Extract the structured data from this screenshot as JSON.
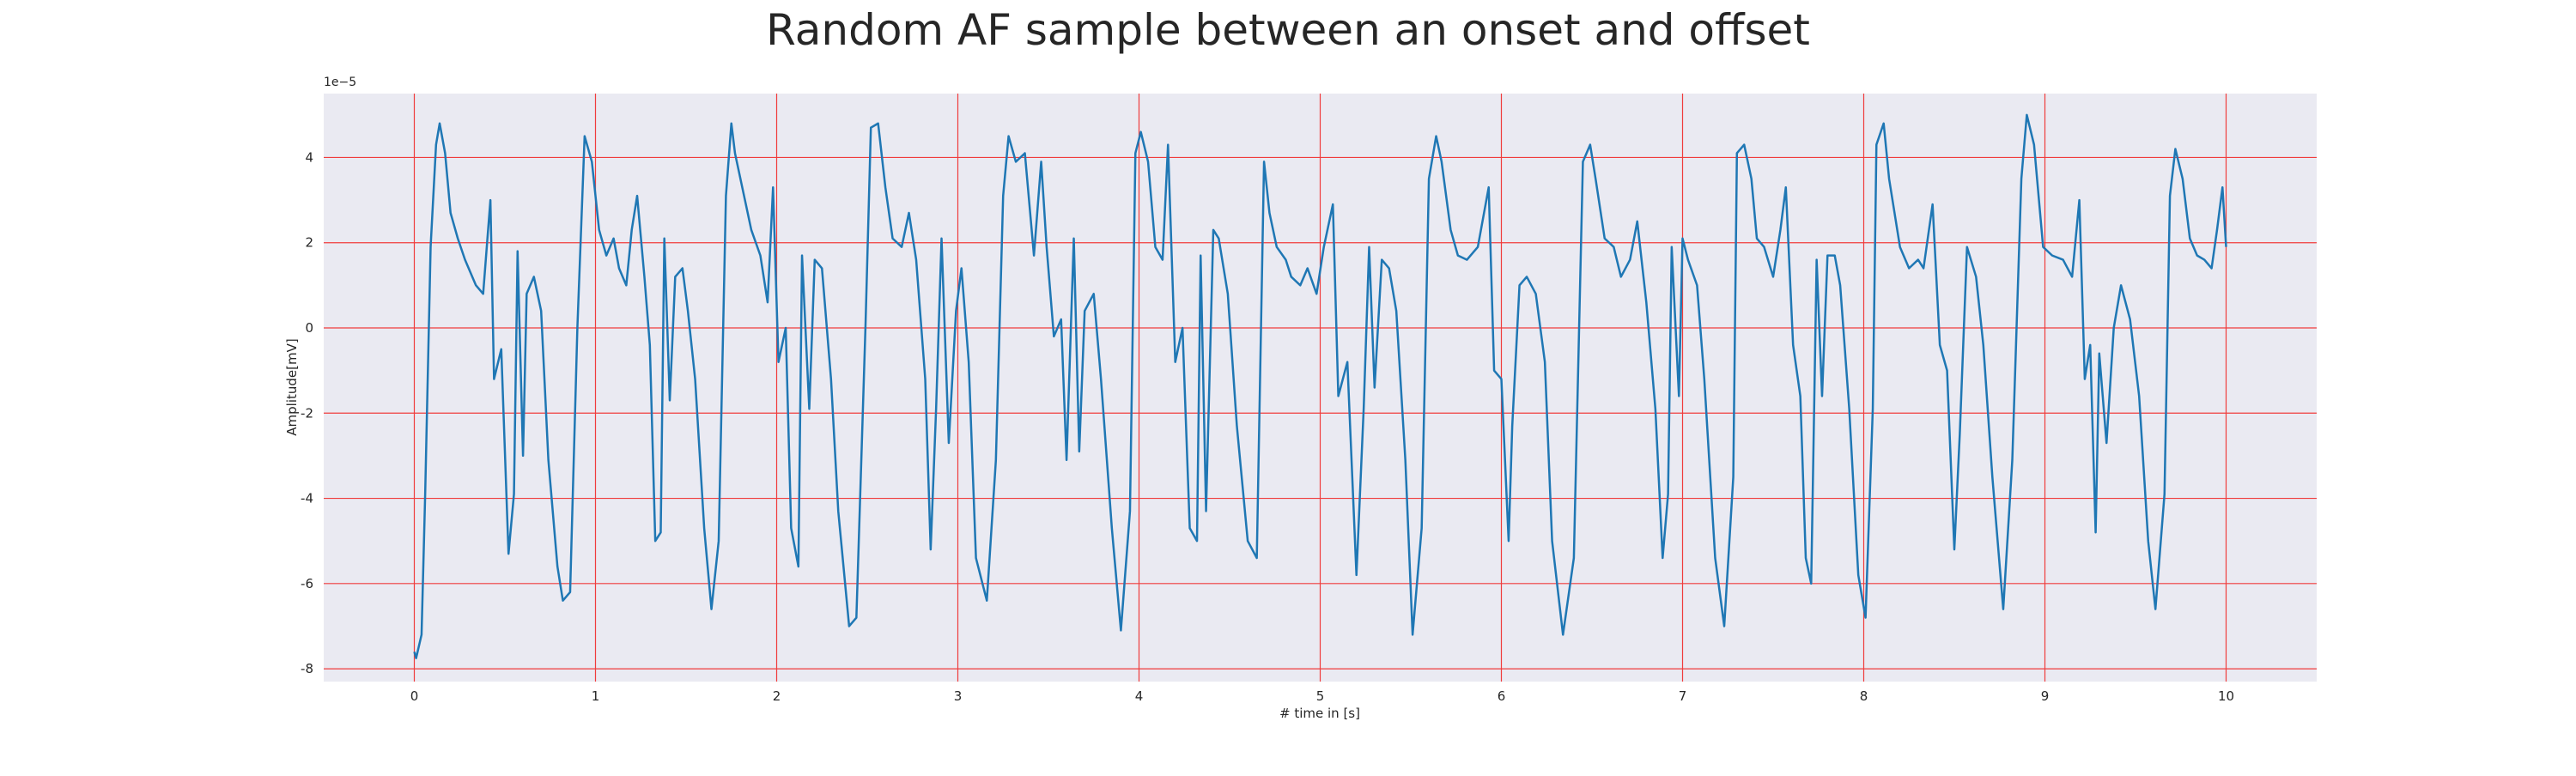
{
  "chart_data": {
    "type": "line",
    "title": "Random AF sample between an onset and offset",
    "xlabel": "# time in [s]",
    "ylabel": "Amplitude[mV]",
    "y_offset_label": "1e−5",
    "color": "#1f77b4",
    "grid": true,
    "grid_color": "#f03c3c",
    "xlim": [
      -0.5,
      10.5
    ],
    "ylim": [
      -8.3,
      5.5
    ],
    "xticks": [
      0,
      1,
      2,
      3,
      4,
      5,
      6,
      7,
      8,
      9,
      10
    ],
    "yticks": [
      -8,
      -6,
      -4,
      -2,
      0,
      2,
      4
    ],
    "x": [
      0,
      0.01,
      0.04,
      0.06,
      0.09,
      0.12,
      0.14,
      0.17,
      0.2,
      0.24,
      0.28,
      0.34,
      0.38,
      0.42,
      0.44,
      0.48,
      0.52,
      0.55,
      0.57,
      0.6,
      0.62,
      0.66,
      0.7,
      0.74,
      0.79,
      0.82,
      0.86,
      0.9,
      0.94,
      0.98,
      1.02,
      1.06,
      1.1,
      1.13,
      1.17,
      1.2,
      1.23,
      1.27,
      1.3,
      1.33,
      1.36,
      1.38,
      1.41,
      1.44,
      1.48,
      1.51,
      1.55,
      1.6,
      1.64,
      1.68,
      1.72,
      1.75,
      1.77,
      1.82,
      1.86,
      1.91,
      1.95,
      1.98,
      2.01,
      2.05,
      2.08,
      2.12,
      2.14,
      2.18,
      2.21,
      2.25,
      2.3,
      2.34,
      2.4,
      2.44,
      2.49,
      2.52,
      2.56,
      2.6,
      2.64,
      2.69,
      2.73,
      2.77,
      2.82,
      2.85,
      2.88,
      2.91,
      2.95,
      2.99,
      3.02,
      3.06,
      3.1,
      3.16,
      3.21,
      3.25,
      3.28,
      3.32,
      3.37,
      3.42,
      3.46,
      3.49,
      3.53,
      3.57,
      3.6,
      3.64,
      3.67,
      3.7,
      3.75,
      3.79,
      3.85,
      3.9,
      3.95,
      3.98,
      4.01,
      4.05,
      4.09,
      4.13,
      4.16,
      4.2,
      4.24,
      4.28,
      4.32,
      4.34,
      4.37,
      4.41,
      4.44,
      4.49,
      4.54,
      4.6,
      4.65,
      4.69,
      4.72,
      4.76,
      4.81,
      4.84,
      4.89,
      4.93,
      4.98,
      5.02,
      5.07,
      5.1,
      5.15,
      5.2,
      5.24,
      5.27,
      5.3,
      5.34,
      5.38,
      5.42,
      5.47,
      5.51,
      5.56,
      5.6,
      5.64,
      5.67,
      5.72,
      5.76,
      5.81,
      5.87,
      5.93,
      5.96,
      6.0,
      6.04,
      6.06,
      6.1,
      6.14,
      6.19,
      6.24,
      6.28,
      6.34,
      6.4,
      6.45,
      6.49,
      6.52,
      6.57,
      6.62,
      6.66,
      6.71,
      6.75,
      6.8,
      6.85,
      6.89,
      6.92,
      6.94,
      6.98,
      7.0,
      7.03,
      7.08,
      7.12,
      7.18,
      7.23,
      7.28,
      7.3,
      7.34,
      7.38,
      7.41,
      7.45,
      7.5,
      7.54,
      7.57,
      7.61,
      7.65,
      7.68,
      7.71,
      7.74,
      7.77,
      7.8,
      7.84,
      7.87,
      7.92,
      7.97,
      8.01,
      8.05,
      8.07,
      8.11,
      8.14,
      8.2,
      8.25,
      8.3,
      8.33,
      8.38,
      8.42,
      8.46,
      8.5,
      8.53,
      8.57,
      8.62,
      8.66,
      8.71,
      8.77,
      8.82,
      8.87,
      8.9,
      8.94,
      8.99,
      9.04,
      9.1,
      9.15,
      9.19,
      9.22,
      9.25,
      9.28,
      9.3,
      9.34,
      9.38,
      9.42,
      9.47,
      9.52,
      9.57,
      9.61,
      9.66,
      9.69,
      9.72,
      9.76,
      9.8,
      9.84,
      9.88,
      9.92,
      9.95,
      9.98,
      10.0
    ],
    "values": [
      -7.6,
      -7.75,
      -7.2,
      -3.9,
      1.9,
      4.3,
      4.8,
      4.1,
      2.7,
      2.1,
      1.6,
      1.0,
      0.8,
      3.0,
      -1.2,
      -0.5,
      -5.3,
      -3.9,
      1.8,
      -3.0,
      0.8,
      1.2,
      0.4,
      -3.1,
      -5.6,
      -6.4,
      -6.2,
      0,
      4.5,
      3.9,
      2.3,
      1.7,
      2.1,
      1.4,
      1.0,
      2.3,
      3.1,
      1.2,
      -0.4,
      -5.0,
      -4.8,
      2.1,
      -1.7,
      1.2,
      1.4,
      0.4,
      -1.2,
      -4.7,
      -6.6,
      -5.0,
      3.1,
      4.8,
      4.1,
      3.1,
      2.3,
      1.7,
      0.6,
      3.3,
      -0.8,
      0,
      -4.7,
      -5.6,
      1.7,
      -1.9,
      1.6,
      1.4,
      -1.2,
      -4.3,
      -7.0,
      -6.8,
      0,
      4.7,
      4.8,
      3.3,
      2.1,
      1.9,
      2.7,
      1.6,
      -1.2,
      -5.2,
      -1.9,
      2.1,
      -2.7,
      0.4,
      1.4,
      -0.8,
      -5.4,
      -6.4,
      -3.1,
      3.1,
      4.5,
      3.9,
      4.1,
      1.7,
      3.9,
      1.9,
      -0.2,
      0.2,
      -3.1,
      2.1,
      -2.9,
      0.4,
      0.8,
      -1.2,
      -4.7,
      -7.1,
      -4.3,
      4.1,
      4.6,
      3.9,
      1.9,
      1.6,
      4.3,
      -0.8,
      0,
      -4.7,
      -5.0,
      1.7,
      -4.3,
      2.3,
      2.1,
      0.8,
      -2.3,
      -5.0,
      -5.4,
      3.9,
      2.7,
      1.9,
      1.6,
      1.2,
      1.0,
      1.4,
      0.8,
      1.9,
      2.9,
      -1.6,
      -0.8,
      -5.8,
      -1.9,
      1.9,
      -1.4,
      1.6,
      1.4,
      0.4,
      -3.1,
      -7.2,
      -4.7,
      3.5,
      4.5,
      3.9,
      2.3,
      1.7,
      1.6,
      1.9,
      3.3,
      -1.0,
      -1.2,
      -5.0,
      -2.3,
      1.0,
      1.2,
      0.8,
      -0.8,
      -5.0,
      -7.2,
      -5.4,
      3.9,
      4.3,
      3.5,
      2.1,
      1.9,
      1.2,
      1.6,
      2.5,
      0.6,
      -1.9,
      -5.4,
      -3.9,
      1.9,
      -1.6,
      2.1,
      1.6,
      1.0,
      -1.2,
      -5.4,
      -7.0,
      -3.5,
      4.1,
      4.3,
      3.5,
      2.1,
      1.9,
      1.2,
      2.3,
      3.3,
      -0.4,
      -1.6,
      -5.4,
      -6.0,
      1.6,
      -1.6,
      1.7,
      1.7,
      1.0,
      -1.9,
      -5.8,
      -6.8,
      -1.9,
      4.3,
      4.8,
      3.5,
      1.9,
      1.4,
      1.6,
      1.4,
      2.9,
      -0.4,
      -1.0,
      -5.2,
      -2.5,
      1.9,
      1.2,
      -0.4,
      -3.5,
      -6.6,
      -3.1,
      3.5,
      5.0,
      4.3,
      1.9,
      1.7,
      1.6,
      1.2,
      3.0,
      -1.2,
      -0.4,
      -4.8,
      -0.6,
      -2.7,
      0,
      1.0,
      0.2,
      -1.6,
      -5.0,
      -6.6,
      -3.9,
      3.1,
      4.2,
      3.5,
      2.1,
      1.7,
      1.6,
      1.4,
      2.3,
      3.3,
      1.9
    ]
  }
}
